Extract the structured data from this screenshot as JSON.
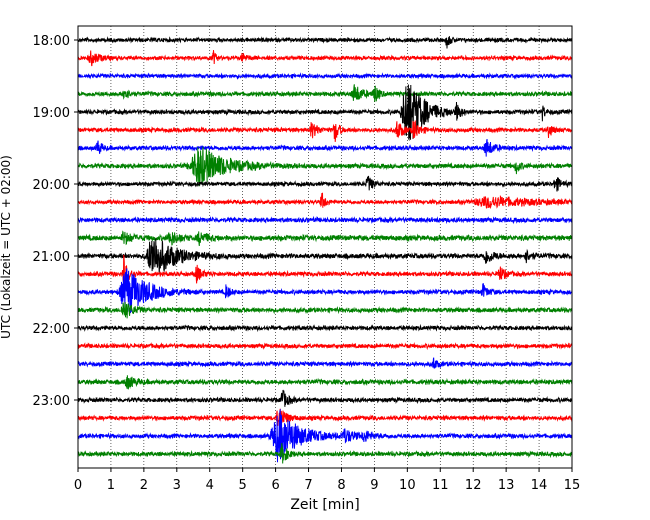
{
  "chart_data": {
    "type": "line",
    "title": "",
    "xlabel": "Zeit  [min]",
    "ylabel": "UTC (Lokalzeit = UTC + 02:00)",
    "xlim": [
      0,
      15
    ],
    "x_ticks": [
      "0",
      "1",
      "2",
      "3",
      "4",
      "5",
      "6",
      "7",
      "8",
      "9",
      "10",
      "11",
      "12",
      "13",
      "14",
      "15"
    ],
    "y_ticks": [
      {
        "label": "18:00",
        "trace": 0
      },
      {
        "label": "19:00",
        "trace": 4
      },
      {
        "label": "20:00",
        "trace": 8
      },
      {
        "label": "21:00",
        "trace": 12
      },
      {
        "label": "22:00",
        "trace": 16
      },
      {
        "label": "23:00",
        "trace": 20
      }
    ],
    "grid": "vertical dotted at each minute",
    "trace_colors": [
      "#000000",
      "#ff0000",
      "#0000ff",
      "#008000"
    ],
    "traces": [
      {
        "start": "18:00",
        "color": "#000000",
        "noise": 2.2,
        "events": [
          {
            "t": 11.2,
            "amp": 7,
            "dur": 0.15
          }
        ]
      },
      {
        "start": "18:15",
        "color": "#ff0000",
        "noise": 2.2,
        "events": [
          {
            "t": 0.4,
            "amp": 7,
            "dur": 0.3
          },
          {
            "t": 4.1,
            "amp": 8,
            "dur": 0.1
          },
          {
            "t": 5.0,
            "amp": 4,
            "dur": 0.2
          }
        ]
      },
      {
        "start": "18:30",
        "color": "#0000ff",
        "noise": 2.2,
        "events": []
      },
      {
        "start": "18:45",
        "color": "#008000",
        "noise": 2.4,
        "events": [
          {
            "t": 1.4,
            "amp": 8,
            "dur": 0.15
          },
          {
            "t": 8.4,
            "amp": 9,
            "dur": 0.3
          },
          {
            "t": 9.0,
            "amp": 10,
            "dur": 0.15
          }
        ]
      },
      {
        "start": "19:00",
        "color": "#000000",
        "noise": 2.4,
        "events": [
          {
            "t": 10.0,
            "amp": 38,
            "dur": 0.6
          },
          {
            "t": 11.5,
            "amp": 8,
            "dur": 0.15
          },
          {
            "t": 14.1,
            "amp": 8,
            "dur": 0.1
          }
        ]
      },
      {
        "start": "19:15",
        "color": "#ff0000",
        "noise": 2.4,
        "events": [
          {
            "t": 7.1,
            "amp": 7,
            "dur": 0.25
          },
          {
            "t": 7.8,
            "amp": 12,
            "dur": 0.15
          },
          {
            "t": 9.7,
            "amp": 10,
            "dur": 0.2
          },
          {
            "t": 10.2,
            "amp": 11,
            "dur": 0.2
          },
          {
            "t": 14.3,
            "amp": 7,
            "dur": 0.15
          }
        ]
      },
      {
        "start": "19:30",
        "color": "#0000ff",
        "noise": 2.4,
        "events": [
          {
            "t": 0.6,
            "amp": 8,
            "dur": 0.15
          },
          {
            "t": 12.4,
            "amp": 9,
            "dur": 0.25
          }
        ]
      },
      {
        "start": "19:45",
        "color": "#008000",
        "noise": 2.6,
        "events": [
          {
            "t": 3.7,
            "amp": 20,
            "dur": 1.0
          },
          {
            "t": 13.3,
            "amp": 7,
            "dur": 0.15
          }
        ]
      },
      {
        "start": "20:00",
        "color": "#000000",
        "noise": 2.2,
        "events": [
          {
            "t": 8.8,
            "amp": 8,
            "dur": 0.2
          },
          {
            "t": 14.5,
            "amp": 8,
            "dur": 0.2
          }
        ]
      },
      {
        "start": "20:15",
        "color": "#ff0000",
        "noise": 2.2,
        "events": [
          {
            "t": 7.4,
            "amp": 9,
            "dur": 0.15
          },
          {
            "t": 12.5,
            "amp": 5,
            "dur": 1.8
          }
        ]
      },
      {
        "start": "20:30",
        "color": "#0000ff",
        "noise": 2.6,
        "events": []
      },
      {
        "start": "20:45",
        "color": "#008000",
        "noise": 3.0,
        "events": [
          {
            "t": 1.4,
            "amp": 6,
            "dur": 0.3
          },
          {
            "t": 2.8,
            "amp": 7,
            "dur": 0.3
          },
          {
            "t": 3.7,
            "amp": 6,
            "dur": 0.3
          }
        ]
      },
      {
        "start": "21:00",
        "color": "#000000",
        "noise": 2.8,
        "events": [
          {
            "t": 2.3,
            "amp": 22,
            "dur": 0.8
          },
          {
            "t": 12.4,
            "amp": 7,
            "dur": 0.3
          },
          {
            "t": 13.6,
            "amp": 6,
            "dur": 0.2
          }
        ]
      },
      {
        "start": "21:15",
        "color": "#ff0000",
        "noise": 2.4,
        "events": [
          {
            "t": 1.4,
            "amp": 22,
            "dur": 0.15
          },
          {
            "t": 3.6,
            "amp": 8,
            "dur": 0.2
          },
          {
            "t": 12.8,
            "amp": 8,
            "dur": 0.2
          }
        ]
      },
      {
        "start": "21:30",
        "color": "#0000ff",
        "noise": 2.4,
        "events": [
          {
            "t": 1.5,
            "amp": 24,
            "dur": 0.8
          },
          {
            "t": 4.5,
            "amp": 7,
            "dur": 0.15
          },
          {
            "t": 12.3,
            "amp": 7,
            "dur": 0.2
          }
        ]
      },
      {
        "start": "21:45",
        "color": "#008000",
        "noise": 2.6,
        "events": [
          {
            "t": 1.4,
            "amp": 10,
            "dur": 0.3
          }
        ]
      },
      {
        "start": "22:00",
        "color": "#000000",
        "noise": 2.4,
        "events": []
      },
      {
        "start": "22:15",
        "color": "#ff0000",
        "noise": 2.4,
        "events": []
      },
      {
        "start": "22:30",
        "color": "#0000ff",
        "noise": 2.4,
        "events": [
          {
            "t": 10.8,
            "amp": 6,
            "dur": 0.15
          }
        ]
      },
      {
        "start": "22:45",
        "color": "#008000",
        "noise": 2.6,
        "events": [
          {
            "t": 1.5,
            "amp": 6,
            "dur": 0.3
          }
        ]
      },
      {
        "start": "23:00",
        "color": "#000000",
        "noise": 2.4,
        "events": [
          {
            "t": 6.2,
            "amp": 10,
            "dur": 0.2
          }
        ]
      },
      {
        "start": "23:15",
        "color": "#ff0000",
        "noise": 2.4,
        "events": [
          {
            "t": 6.1,
            "amp": 14,
            "dur": 0.25
          }
        ]
      },
      {
        "start": "23:30",
        "color": "#0000ff",
        "noise": 2.4,
        "events": [
          {
            "t": 6.1,
            "amp": 26,
            "dur": 0.8
          },
          {
            "t": 8.1,
            "amp": 6,
            "dur": 0.4
          },
          {
            "t": 8.7,
            "amp": 5,
            "dur": 0.3
          }
        ]
      },
      {
        "start": "23:45",
        "color": "#008000",
        "noise": 2.4,
        "events": [
          {
            "t": 6.2,
            "amp": 10,
            "dur": 0.2
          }
        ]
      }
    ]
  }
}
